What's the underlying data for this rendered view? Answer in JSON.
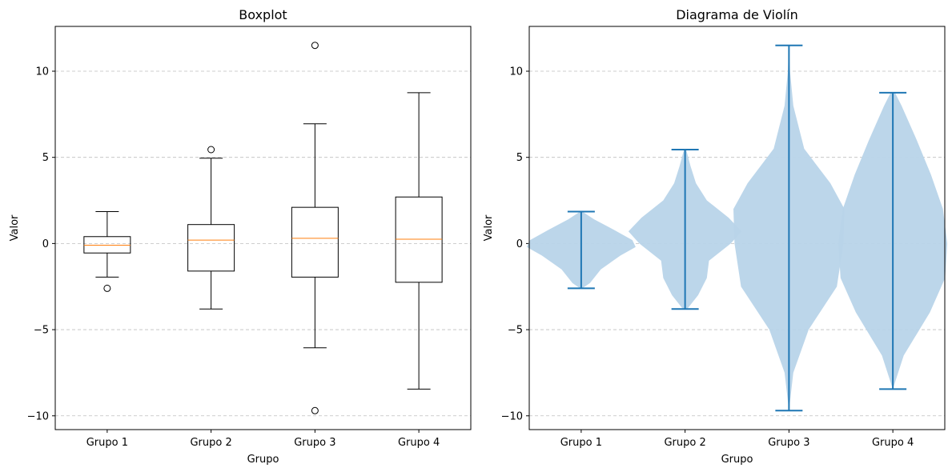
{
  "chart_data": [
    {
      "type": "boxplot",
      "title": "Boxplot",
      "xlabel": "Grupo",
      "ylabel": "Valor",
      "ylim": [
        -10.8,
        12.6
      ],
      "yticks": [
        -10,
        -5,
        0,
        5,
        10
      ],
      "ytick_labels": [
        "−10",
        "−5",
        "0",
        "5",
        "10"
      ],
      "grid": "y dashed",
      "categories": [
        "Grupo 1",
        "Grupo 2",
        "Grupo 3",
        "Grupo 4"
      ],
      "box_color": "#000000",
      "median_color": "#ff7f0e",
      "boxes": [
        {
          "q1": -0.55,
          "median": -0.1,
          "q3": 0.4,
          "whisker_low": -1.95,
          "whisker_high": 1.85,
          "outliers": [
            -2.6
          ]
        },
        {
          "q1": -1.6,
          "median": 0.2,
          "q3": 1.1,
          "whisker_low": -3.8,
          "whisker_high": 4.95,
          "outliers": [
            5.45
          ]
        },
        {
          "q1": -1.95,
          "median": 0.3,
          "q3": 2.1,
          "whisker_low": -6.05,
          "whisker_high": 6.95,
          "outliers": [
            11.5,
            -9.7
          ]
        },
        {
          "q1": -2.25,
          "median": 0.25,
          "q3": 2.7,
          "whisker_low": -8.45,
          "whisker_high": 8.75,
          "outliers": []
        }
      ]
    },
    {
      "type": "violin",
      "title": "Diagrama de Violín",
      "xlabel": "Grupo",
      "ylabel": "Valor",
      "ylim": [
        -10.8,
        12.6
      ],
      "yticks": [
        -10,
        -5,
        0,
        5,
        10
      ],
      "ytick_labels": [
        "−10",
        "−5",
        "0",
        "5",
        "10"
      ],
      "grid": "y dashed",
      "categories": [
        "Grupo 1",
        "Grupo 2",
        "Grupo 3",
        "Grupo 4"
      ],
      "line_color": "#1f77b4",
      "fill_color": "#b8d4e9",
      "violins": [
        {
          "min": -2.6,
          "max": 1.85,
          "profile": [
            [
              -2.6,
              0.01
            ],
            [
              -2.3,
              0.08
            ],
            [
              -1.5,
              0.18
            ],
            [
              -0.7,
              0.36
            ],
            [
              -0.2,
              0.5
            ],
            [
              0.2,
              0.47
            ],
            [
              0.8,
              0.3
            ],
            [
              1.4,
              0.12
            ],
            [
              1.85,
              0.01
            ]
          ]
        },
        {
          "min": -3.8,
          "max": 5.45,
          "profile": [
            [
              -3.8,
              0.02
            ],
            [
              -3.0,
              0.12
            ],
            [
              -2.0,
              0.2
            ],
            [
              -1.0,
              0.22
            ],
            [
              0.0,
              0.42
            ],
            [
              0.7,
              0.52
            ],
            [
              1.5,
              0.4
            ],
            [
              2.5,
              0.2
            ],
            [
              3.5,
              0.1
            ],
            [
              4.5,
              0.05
            ],
            [
              5.45,
              0.01
            ]
          ]
        },
        {
          "min": -9.7,
          "max": 11.5,
          "profile": [
            [
              -9.7,
              0.0
            ],
            [
              -7.5,
              0.04
            ],
            [
              -5.0,
              0.18
            ],
            [
              -2.5,
              0.44
            ],
            [
              0.0,
              0.5
            ],
            [
              2.0,
              0.51
            ],
            [
              3.5,
              0.38
            ],
            [
              5.5,
              0.14
            ],
            [
              8.0,
              0.04
            ],
            [
              10.0,
              0.01
            ],
            [
              11.5,
              0.0
            ]
          ]
        },
        {
          "min": -8.45,
          "max": 8.75,
          "profile": [
            [
              -8.45,
              0.0
            ],
            [
              -6.5,
              0.1
            ],
            [
              -4.0,
              0.34
            ],
            [
              -2.0,
              0.48
            ],
            [
              0.0,
              0.5
            ],
            [
              2.0,
              0.46
            ],
            [
              4.0,
              0.35
            ],
            [
              6.0,
              0.22
            ],
            [
              8.0,
              0.08
            ],
            [
              8.75,
              0.02
            ]
          ]
        }
      ]
    }
  ]
}
